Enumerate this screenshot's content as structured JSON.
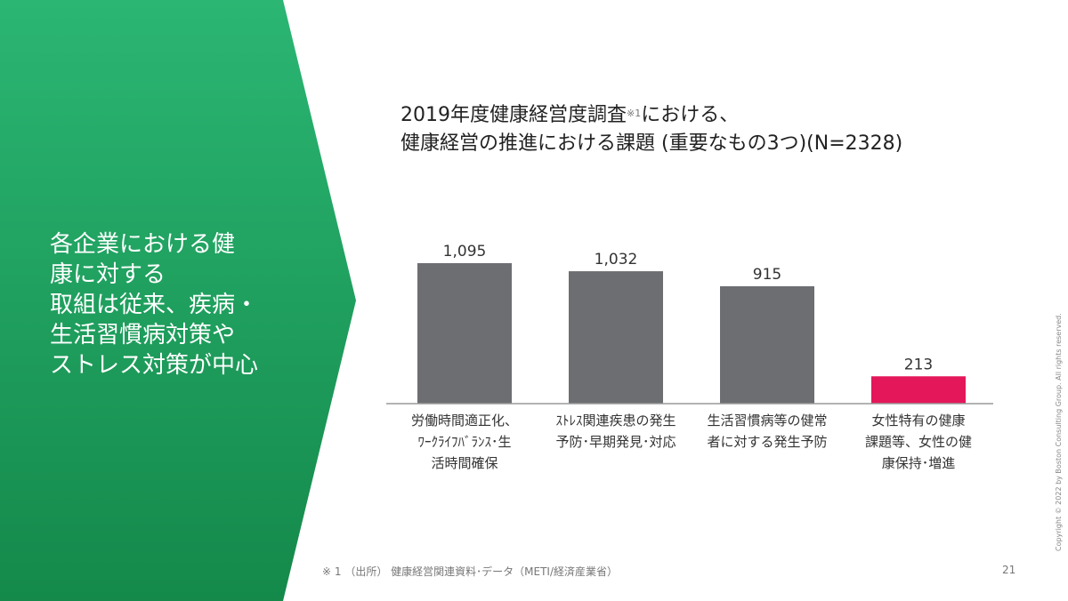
{
  "left_panel": {
    "lines": [
      "各企業における健",
      "康に対する",
      "取組は従来、疾病・",
      "生活習慣病対策や",
      "ストレス対策が中心"
    ],
    "colors": {
      "top": "#2bb673",
      "bottom": "#14894a"
    }
  },
  "title": {
    "line1_main": "2019年度健康経営度調査",
    "line1_note": "※1",
    "line1_tail": "における、",
    "line2": "健康経営の推進における課題 (重要なもの3つ)(N=2328)"
  },
  "chart_data": {
    "type": "bar",
    "categories": [
      [
        "労働時間適正化、",
        "ﾜｰｸﾗｲﾌﾊﾞﾗﾝｽ･生",
        "活時間確保"
      ],
      [
        "ｽﾄﾚｽ関連疾患の発生",
        "予防･早期発見･対応"
      ],
      [
        "生活習慣病等の健常",
        "者に対する発生予防"
      ],
      [
        "女性特有の健康",
        "課題等、女性の健",
        "康保持･増進"
      ]
    ],
    "values": [
      1095,
      1032,
      915,
      213
    ],
    "value_labels": [
      "1,095",
      "1,032",
      "915",
      "213"
    ],
    "colors": [
      "#6d6e71",
      "#6d6e71",
      "#6d6e71",
      "#e3175a"
    ],
    "ylim": [
      0,
      1095
    ]
  },
  "footnote": "※ 1 （出所） 健康経営関連資料･データ（METI/経済産業省）",
  "page_number": "21",
  "copyright": "Copyright © 2022 by Boston Consulting Group. All rights reserved."
}
